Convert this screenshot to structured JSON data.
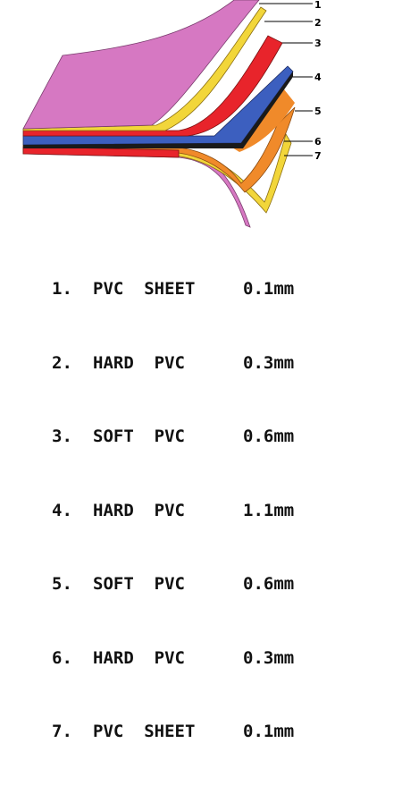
{
  "callouts": [
    "1",
    "2",
    "3",
    "4",
    "5",
    "6",
    "7"
  ],
  "layers": [
    {
      "number": "1.",
      "name": "PVC  SHEET",
      "thickness": "0.1mm",
      "color": "#d678c2"
    },
    {
      "number": "2.",
      "name": "HARD  PVC",
      "thickness": "0.3mm",
      "color": "#f2d63a"
    },
    {
      "number": "3.",
      "name": "SOFT  PVC",
      "thickness": "0.6mm",
      "color": "#e8242b"
    },
    {
      "number": "4.",
      "name": "HARD  PVC",
      "thickness": "1.1mm",
      "color": "#3c5fbf"
    },
    {
      "number": "5.",
      "name": "SOFT  PVC",
      "thickness": "0.6mm",
      "color": "#f08a2a"
    },
    {
      "number": "6.",
      "name": "HARD  PVC",
      "thickness": "0.3mm",
      "color": "#f2d63a"
    },
    {
      "number": "7.",
      "name": "PVC  SHEET",
      "thickness": "0.1mm",
      "color": "#d678c2"
    }
  ]
}
